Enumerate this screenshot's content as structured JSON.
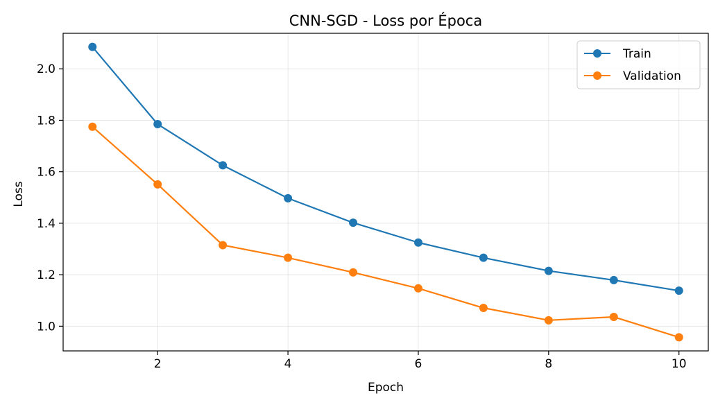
{
  "chart_data": {
    "type": "line",
    "title": "CNN-SGD - Loss por Época",
    "xlabel": "Epoch",
    "ylabel": "Loss",
    "x": [
      1,
      2,
      3,
      4,
      5,
      6,
      7,
      8,
      9,
      10
    ],
    "xlim": [
      0.55,
      10.45
    ],
    "ylim": [
      0.904,
      2.138
    ],
    "xticks": [
      2,
      4,
      6,
      8,
      10
    ],
    "yticks": [
      "1.0",
      "1.2",
      "1.4",
      "1.6",
      "1.8",
      "2.0"
    ],
    "grid": true,
    "legend_position": "top-right",
    "series": [
      {
        "name": "Train",
        "color": "#1f77b4",
        "values": [
          2.085,
          1.785,
          1.625,
          1.497,
          1.402,
          1.325,
          1.266,
          1.215,
          1.179,
          1.138
        ]
      },
      {
        "name": "Validation",
        "color": "#ff7f0e",
        "values": [
          1.775,
          1.551,
          1.315,
          1.266,
          1.209,
          1.147,
          1.071,
          1.023,
          1.036,
          0.957
        ]
      }
    ]
  }
}
